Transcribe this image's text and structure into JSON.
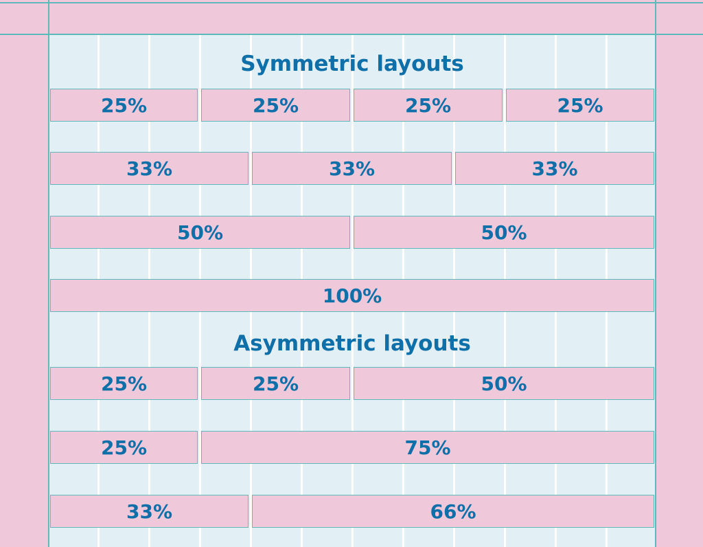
{
  "sections": {
    "symmetric_title": "Symmetric layouts",
    "asymmetric_title": "Asymmetric layouts"
  },
  "symmetric_rows": [
    [
      "25%",
      "25%",
      "25%",
      "25%"
    ],
    [
      "33%",
      "33%",
      "33%"
    ],
    [
      "50%",
      "50%"
    ],
    [
      "100%"
    ]
  ],
  "asymmetric_rows": [
    [
      "25%",
      "25%",
      "50%"
    ],
    [
      "25%",
      "75%"
    ],
    [
      "33%",
      "66%"
    ]
  ],
  "colors": {
    "background": "#e2eff4",
    "box_fill": "#efc8da",
    "grid_line": "#5fb8bc",
    "text": "#0f6fa8"
  }
}
